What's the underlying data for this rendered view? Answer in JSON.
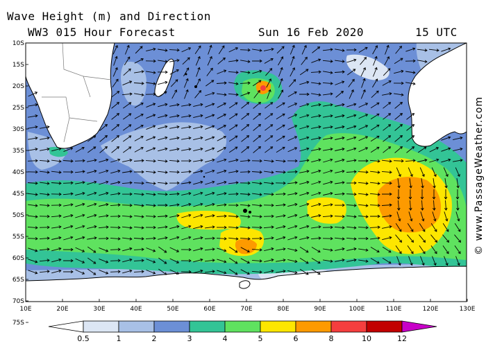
{
  "header": {
    "title": "Wave Height (m) and Direction",
    "model": "WW3 015 Hour Forecast",
    "date": "Sun 16 Feb 2020",
    "time": "15 UTC"
  },
  "credit": "© www.PassageWeather.com",
  "map": {
    "latitude_labels": [
      "10S",
      "15S",
      "20S",
      "25S",
      "30S",
      "35S",
      "40S",
      "45S",
      "50S",
      "55S",
      "60S",
      "65S",
      "70S",
      "75S"
    ],
    "longitude_labels": [
      "10E",
      "20E",
      "30E",
      "40E",
      "50E",
      "60E",
      "70E",
      "80E",
      "90E",
      "100E",
      "110E",
      "120E",
      "130E"
    ],
    "land_color": "#ffffff",
    "ocean_base_color": "#6c8fd6"
  },
  "colorbar": {
    "labels": [
      "0.5",
      "1",
      "2",
      "3",
      "4",
      "5",
      "6",
      "8",
      "10",
      "12"
    ],
    "colors": [
      "#ffffff",
      "#dce6f4",
      "#a8c0e6",
      "#6c8fd6",
      "#33c496",
      "#5fe25f",
      "#fde600",
      "#fd9a00",
      "#f53e3e",
      "#c20000",
      "#c800c8"
    ]
  }
}
